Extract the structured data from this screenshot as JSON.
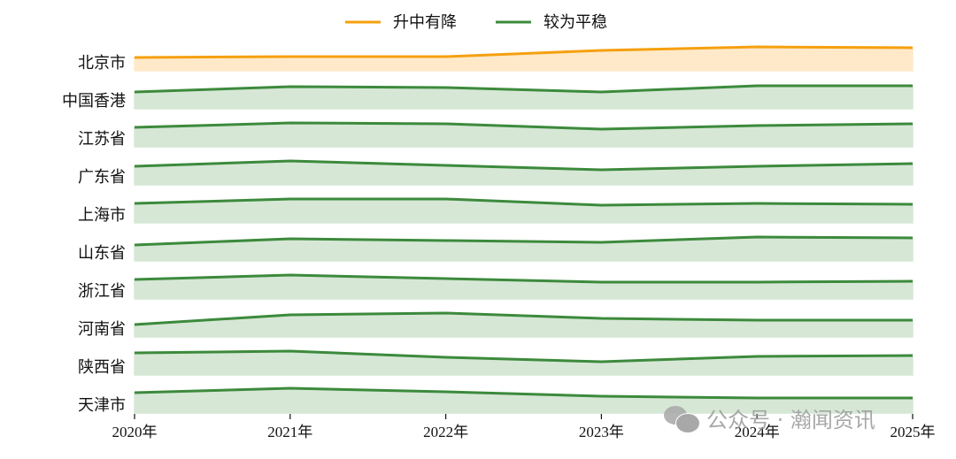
{
  "legend": {
    "items": [
      {
        "label": "升中有降",
        "color": "#f5a00f"
      },
      {
        "label": "较为平稳",
        "color": "#3c8a3c"
      }
    ]
  },
  "colors": {
    "orange_line": "#f5a00f",
    "orange_fill": "#ffe9c9",
    "green_line": "#3c8a3c",
    "green_fill": "#d6e7d6"
  },
  "watermark": {
    "text": "公众号 · 瀚闻资讯",
    "icon": "wechat-icon"
  },
  "chart_data": {
    "type": "area",
    "title": "",
    "subtitle": "",
    "xlabel": "",
    "ylabel": "",
    "layout": "ridgeline / small multiples, one band per region",
    "legend_position": "top-center",
    "grid": false,
    "categories": [
      "2020年",
      "2021年",
      "2022年",
      "2023年",
      "2024年",
      "2025年"
    ],
    "value_unit": "relative band height (px above band baseline, estimated; no y-axis shown)",
    "series": [
      {
        "name": "北京市",
        "group": "升中有降",
        "values": [
          15,
          16,
          16,
          23,
          27,
          26
        ]
      },
      {
        "name": "中国香港",
        "group": "较为平稳",
        "values": [
          19,
          25,
          24,
          19,
          26,
          26
        ]
      },
      {
        "name": "江苏省",
        "group": "较为平稳",
        "values": [
          22,
          27,
          26,
          20,
          24,
          26
        ]
      },
      {
        "name": "广东省",
        "group": "较为平稳",
        "values": [
          21,
          27,
          22,
          17,
          21,
          24
        ]
      },
      {
        "name": "上海市",
        "group": "较为平稳",
        "values": [
          22,
          27,
          27,
          20,
          22,
          21
        ]
      },
      {
        "name": "山东省",
        "group": "较为平稳",
        "values": [
          18,
          25,
          23,
          21,
          27,
          26
        ]
      },
      {
        "name": "浙江省",
        "group": "较为平稳",
        "values": [
          22,
          27,
          23,
          19,
          19,
          20
        ]
      },
      {
        "name": "河南省",
        "group": "较为平稳",
        "values": [
          14,
          25,
          27,
          21,
          19,
          19
        ]
      },
      {
        "name": "陕西省",
        "group": "较为平稳",
        "values": [
          25,
          27,
          20,
          15,
          21,
          22
        ]
      },
      {
        "name": "天津市",
        "group": "较为平稳",
        "values": [
          23,
          28,
          24,
          19,
          17,
          17
        ]
      }
    ]
  }
}
